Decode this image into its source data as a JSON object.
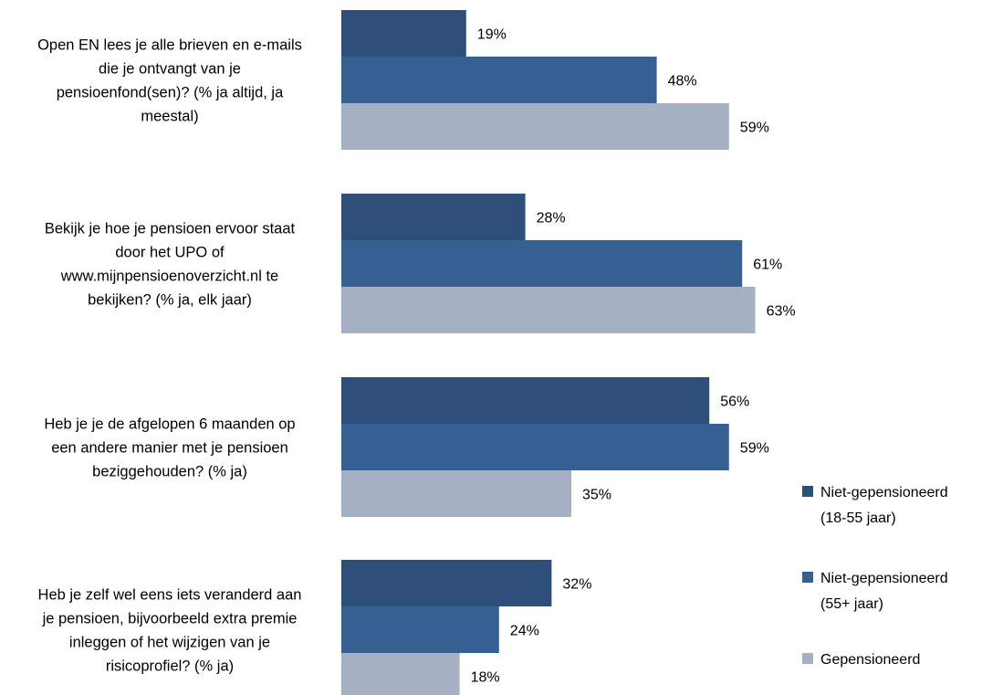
{
  "chart_data": {
    "type": "bar",
    "orientation": "horizontal",
    "categories": [
      "Open EN lees je alle brieven en e-mails die je ontvangt van je pensioenfond(sen)? (% ja altijd, ja meestal)",
      "Bekijk je hoe je pensioen ervoor staat door het UPO of www.mijnpensioenoverzicht.nl te bekijken? (% ja, elk jaar)",
      "Heb je je de afgelopen 6 maanden op een andere manier met je pensioen beziggehouden? (% ja)",
      "Heb je zelf wel eens iets veranderd aan je pensioen, bijvoorbeeld extra premie inleggen of het wijzigen van je risicoprofiel? (% ja)"
    ],
    "category_lines": [
      [
        "Open EN lees je alle brieven en e-mails",
        "die je ontvangt van je",
        "pensioenfond(sen)? (% ja altijd, ja",
        "meestal)"
      ],
      [
        "Bekijk je hoe je pensioen ervoor staat",
        "door het UPO of",
        "www.mijnpensioenoverzicht.nl te",
        "bekijken? (% ja, elk jaar)"
      ],
      [
        "Heb je je de afgelopen 6 maanden op",
        "een andere manier met je pensioen",
        "beziggehouden? (% ja)"
      ],
      [
        "Heb je zelf wel eens iets veranderd aan",
        "je pensioen, bijvoorbeeld extra premie",
        "inleggen of het wijzigen van je",
        "risicoprofiel? (% ja)"
      ]
    ],
    "series": [
      {
        "name": "Niet-gepensioneerd (18-55 jaar)",
        "legend_lines": [
          "Niet-gepensioneerd",
          "(18-55 jaar)"
        ],
        "color": "#2e4f7a",
        "values": [
          19,
          28,
          56,
          32
        ]
      },
      {
        "name": "Niet-gepensioneerd (55+ jaar)",
        "legend_lines": [
          "Niet-gepensioneerd",
          "(55+ jaar)"
        ],
        "color": "#376092",
        "values": [
          48,
          61,
          59,
          24
        ]
      },
      {
        "name": "Gepensioneerd",
        "legend_lines": [
          "Gepensioneerd"
        ],
        "color": "#a6b0c3",
        "values": [
          59,
          63,
          35,
          18
        ]
      }
    ],
    "value_suffix": "%",
    "xlim": [
      0,
      100
    ],
    "grid": false,
    "legend_position": "bottom-right"
  }
}
